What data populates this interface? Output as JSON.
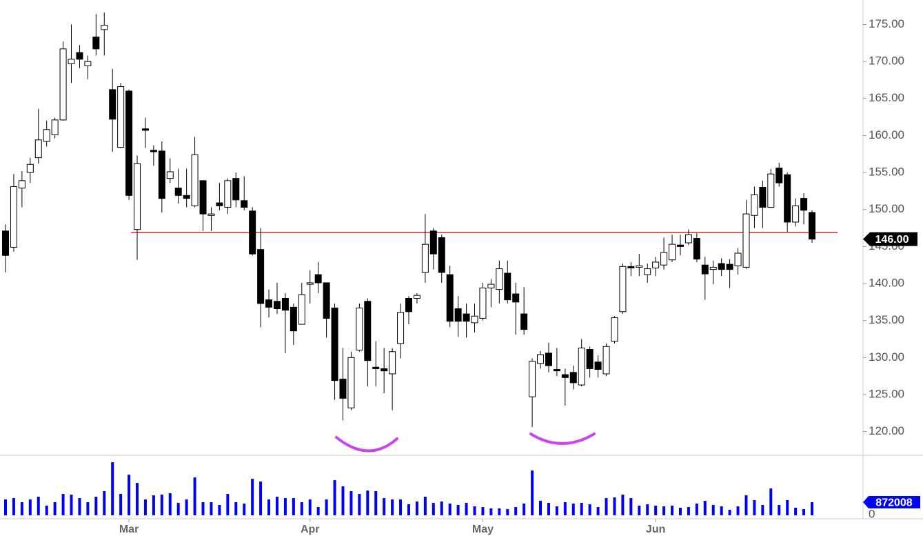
{
  "chart_data": {
    "type": "candlestick",
    "categories": [
      null,
      null,
      null,
      null,
      null,
      null,
      null,
      null,
      null,
      null,
      null,
      null,
      null,
      null,
      null,
      "Mar",
      null,
      null,
      null,
      null,
      null,
      null,
      null,
      null,
      null,
      null,
      null,
      null,
      null,
      null,
      null,
      null,
      null,
      null,
      null,
      null,
      null,
      "Apr",
      null,
      null,
      null,
      null,
      null,
      null,
      null,
      null,
      null,
      null,
      null,
      null,
      null,
      null,
      null,
      null,
      null,
      null,
      null,
      null,
      "May",
      null,
      null,
      null,
      null,
      null,
      null,
      null,
      null,
      null,
      null,
      null,
      null,
      null,
      null,
      null,
      null,
      null,
      null,
      null,
      null,
      "Jun",
      null,
      null,
      null,
      null,
      null,
      null,
      null,
      null,
      null,
      null,
      null,
      null,
      null,
      null,
      null,
      null,
      null,
      null,
      null
    ],
    "open": [
      147.1,
      144.9,
      152.9,
      155,
      157,
      159.2,
      160.1,
      162.1,
      169.7,
      171.2,
      169.4,
      173.3,
      174.3,
      166.2,
      158.4,
      166,
      147.3,
      160.9,
      158,
      157.9,
      154.2,
      152.9,
      151.9,
      150.5,
      153.9,
      149.2,
      150.9,
      150.3,
      154.2,
      151.2,
      149.8,
      144.6,
      137.8,
      137.6,
      138,
      136.8,
      134.5,
      139.9,
      141.2,
      140.1,
      136.7,
      127.1,
      123.2,
      131,
      137.6,
      128.7,
      128.5,
      127.8,
      131.9,
      138,
      138,
      141.5,
      147.1,
      146.2,
      141.2,
      136.6,
      135.9,
      134.7,
      135.3,
      139.4,
      139.2,
      141.4,
      138.6,
      135.9,
      124.7,
      129.2,
      130.6,
      128.4,
      127.7,
      128,
      126.3,
      131.1,
      129.4,
      127.8,
      132.2,
      136.2,
      142.3,
      142.2,
      141.2,
      142.1,
      142.5,
      143.2,
      145.2,
      145.5,
      146.1,
      142.5,
      141.9,
      142.7,
      142.6,
      142.4,
      142.2,
      149.2,
      153,
      150.3,
      155.6,
      154.7,
      148.3,
      151.5,
      149.6
    ],
    "high": [
      148,
      154.8,
      155.2,
      157,
      163.6,
      162,
      162.4,
      172.7,
      175,
      172.2,
      170.8,
      176.4,
      176.6,
      169,
      167.1,
      166.2,
      157.3,
      162.4,
      158.7,
      159.2,
      156.9,
      155.5,
      155.5,
      159.8,
      153.9,
      150.3,
      153.6,
      154.2,
      155,
      154.5,
      150.3,
      147.5,
      139.2,
      140.1,
      138.7,
      137.3,
      140.1,
      141.8,
      142.9,
      140.1,
      137.3,
      131.3,
      130.8,
      137.3,
      138,
      132.2,
      131.3,
      131.3,
      137.3,
      138.3,
      138.7,
      149.4,
      147.5,
      146.6,
      142.4,
      138.3,
      137.3,
      137.3,
      140.1,
      140.6,
      143.1,
      143.1,
      140.1,
      139.5,
      129.9,
      130.9,
      132,
      131.3,
      128.5,
      128.9,
      132.5,
      131.5,
      130.3,
      131.9,
      135.6,
      142.7,
      142.9,
      144,
      142.7,
      143.6,
      146.2,
      146.6,
      146.6,
      147.3,
      146.8,
      143.6,
      143.1,
      143.4,
      143.3,
      144.8,
      151.3,
      153.1,
      153.9,
      155.5,
      156.3,
      155,
      151.5,
      152.2,
      149.9
    ],
    "low": [
      141.5,
      144.3,
      150.3,
      153.6,
      156.2,
      158.5,
      159.6,
      162,
      167.1,
      169.1,
      167.6,
      170.8,
      170.8,
      157.8,
      158.3,
      151.3,
      143.2,
      158.3,
      155.9,
      149.6,
      153.6,
      150.8,
      150.3,
      150.3,
      147.1,
      147.1,
      149.9,
      149.4,
      150.3,
      149.9,
      143.8,
      134.1,
      135.4,
      135.9,
      130.6,
      131.7,
      134.5,
      137.3,
      138.7,
      132.7,
      124.3,
      121.5,
      122.9,
      130.8,
      126.1,
      126.1,
      125.2,
      122.9,
      129.9,
      134.5,
      137.3,
      140.1,
      141.9,
      140.1,
      134.1,
      132.8,
      132.7,
      133.4,
      135,
      136.8,
      137.3,
      137.3,
      133.1,
      133.1,
      120.6,
      128.5,
      128,
      127.5,
      123.5,
      125.7,
      126.1,
      127.3,
      127.3,
      127.5,
      131.9,
      135.9,
      141,
      141,
      140.1,
      141,
      141.9,
      142.9,
      143.8,
      145.2,
      142.9,
      137.8,
      139.9,
      141,
      139.4,
      141.2,
      142,
      147.5,
      147.5,
      150.2,
      153.1,
      147,
      147.7,
      148,
      145.5
    ],
    "close": [
      143.8,
      153.1,
      153.9,
      156.1,
      159.4,
      160.8,
      162.1,
      171.7,
      170.3,
      170.3,
      170,
      171.7,
      174.9,
      162.2,
      166.6,
      151.9,
      156.2,
      160.7,
      157.8,
      151.5,
      155.1,
      151.9,
      151.5,
      157.4,
      149.4,
      149.4,
      150.5,
      153.9,
      151.3,
      150.3,
      144,
      137.3,
      136.8,
      136.6,
      136.4,
      133.6,
      138.5,
      140.1,
      140.1,
      135.3,
      126.9,
      124.5,
      130,
      136.7,
      129.6,
      128.5,
      128.2,
      130.8,
      136.1,
      136.2,
      138.4,
      145.3,
      144,
      141.5,
      134.9,
      134.9,
      134.9,
      135.6,
      139.4,
      139.9,
      142,
      137.8,
      137.5,
      133.8,
      129.5,
      130.4,
      128.9,
      128.2,
      127.3,
      126.6,
      131.3,
      128.5,
      128.4,
      131.5,
      135.4,
      142.3,
      142.1,
      142.4,
      142,
      142.9,
      144.2,
      145.3,
      145,
      146.6,
      143.3,
      141.3,
      142.2,
      141.9,
      141.9,
      144.1,
      149.4,
      152,
      150.3,
      154.8,
      153.6,
      148.3,
      150.5,
      149.9,
      146
    ],
    "last_price_label": "146.00",
    "up_color": "#ffffff",
    "down_color": "#000000",
    "ylim": [
      116.8,
      178.3
    ],
    "yticks": [
      {
        "value": 120,
        "label": "120.00"
      },
      {
        "value": 125,
        "label": "125.00"
      },
      {
        "value": 130,
        "label": "130.00"
      },
      {
        "value": 135,
        "label": "135.00"
      },
      {
        "value": 140,
        "label": "140.00"
      },
      {
        "value": 145,
        "label": "145.00"
      },
      {
        "value": 150,
        "label": "150.00"
      },
      {
        "value": 155,
        "label": "155.00"
      },
      {
        "value": 160,
        "label": "160.00"
      },
      {
        "value": 165,
        "label": "165.00"
      },
      {
        "value": 170,
        "label": "170.00"
      },
      {
        "value": 175,
        "label": "175.00"
      }
    ],
    "hline": {
      "value": 146.9,
      "color": "#e06060"
    },
    "volume": {
      "values": [
        1055700,
        1147500,
        872100,
        1055700,
        1239300,
        642600,
        872100,
        1422900,
        1377000,
        1147500,
        872100,
        1239300,
        1606500,
        3534300,
        1422900,
        2708100,
        2157300,
        1055700,
        1331100,
        1377000,
        1468800,
        826200,
        1055700,
        2524500,
        872100,
        872100,
        688500,
        1422900,
        872100,
        780300,
        2432700,
        2249100,
        1055700,
        1239300,
        1147500,
        1147500,
        872100,
        1055700,
        550800,
        1055700,
        2340900,
        1927800,
        1606500,
        1422900,
        1652400,
        1606500,
        1147500,
        1055700,
        1055700,
        734400,
        918000,
        1239300,
        826200,
        918000,
        780300,
        688500,
        826200,
        596700,
        550800,
        459000,
        459000,
        413100,
        550800,
        780300,
        2983500,
        963900,
        826200,
        596700,
        872100,
        780300,
        826200,
        734400,
        550800,
        1147500,
        1193400,
        1377000,
        1147500,
        642600,
        734400,
        642600,
        596700,
        642600,
        504900,
        550800,
        780300,
        963900,
        688500,
        596700,
        367200,
        596700,
        1331100,
        1009800,
        688500,
        1790100,
        688500,
        1009800,
        504900,
        413100,
        872008
      ],
      "color": "#0000ff",
      "ylim": [
        0,
        4000000
      ],
      "yticks": [
        0
      ]
    }
  }
}
